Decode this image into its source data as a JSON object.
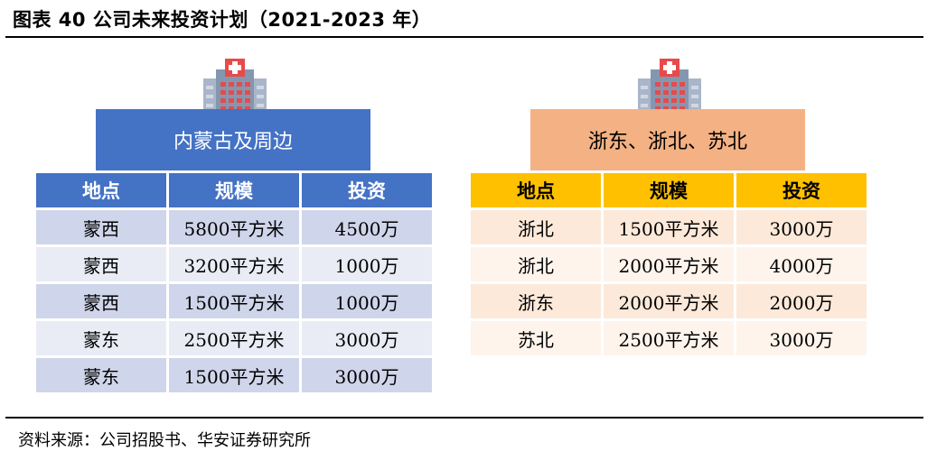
{
  "title": "图表 40  公司未来投资计划（2021-2023 年）",
  "source": "资料来源：公司招股书、华安证券研究所",
  "colors": {
    "left_header": "#4472c4",
    "left_row_odd": "#cfd5ea",
    "left_row_even": "#e9ebf5",
    "right_header": "#ffc000",
    "right_region": "#f4b183",
    "right_row_odd": "#fde9d9",
    "right_row_even": "#fef4ec",
    "building": "#8497b0",
    "building_cross": "#e84a4a"
  },
  "left_panel": {
    "icon": "hospital-building-icon",
    "region": "内蒙古及周边",
    "columns": [
      "地点",
      "规模",
      "投资"
    ],
    "rows": [
      [
        "蒙西",
        "5800平方米",
        "4500万"
      ],
      [
        "蒙西",
        "3200平方米",
        "1000万"
      ],
      [
        "蒙西",
        "1500平方米",
        "1000万"
      ],
      [
        "蒙东",
        "2500平方米",
        "3000万"
      ],
      [
        "蒙东",
        "1500平方米",
        "3000万"
      ]
    ]
  },
  "right_panel": {
    "icon": "hospital-building-icon",
    "region": "浙东、浙北、苏北",
    "columns": [
      "地点",
      "规模",
      "投资"
    ],
    "rows": [
      [
        "浙北",
        "1500平方米",
        "3000万"
      ],
      [
        "浙北",
        "2000平方米",
        "4000万"
      ],
      [
        "浙东",
        "2000平方米",
        "2000万"
      ],
      [
        "苏北",
        "2500平方米",
        "3000万"
      ]
    ]
  }
}
